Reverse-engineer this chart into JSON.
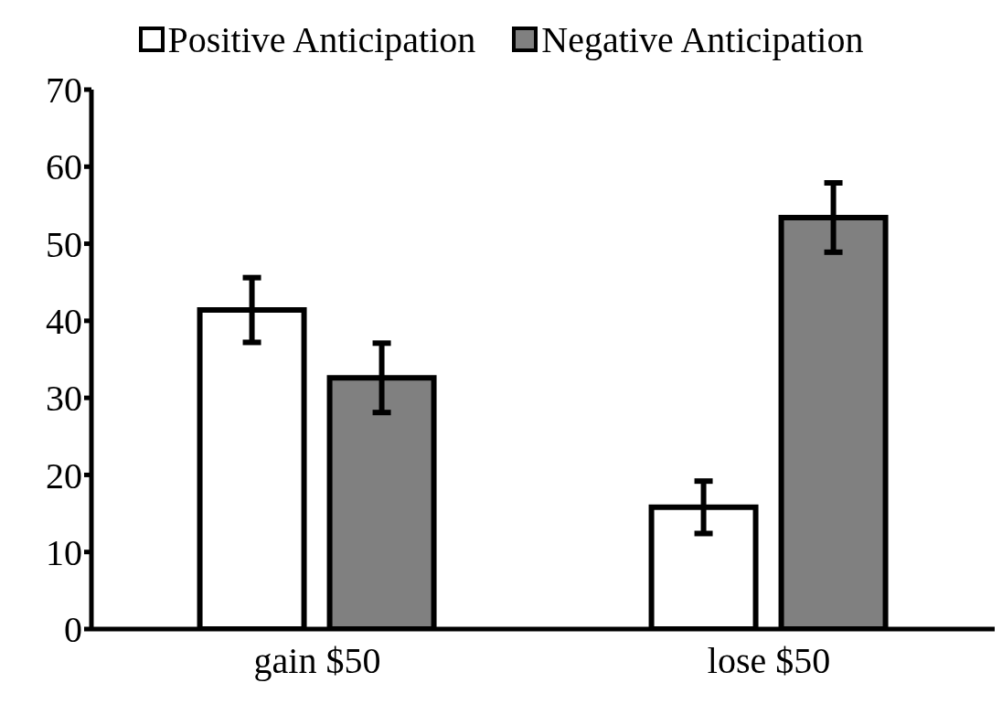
{
  "chart_data": {
    "type": "bar",
    "categories": [
      "gain $50",
      "lose $50"
    ],
    "series": [
      {
        "name": "Positive Anticipation",
        "color": "#ffffff",
        "values": [
          41.4,
          15.8
        ],
        "errors": [
          4.2,
          3.4
        ]
      },
      {
        "name": "Negative Anticipation",
        "color": "#808080",
        "values": [
          32.6,
          53.4
        ],
        "errors": [
          4.5,
          4.5
        ]
      }
    ],
    "ylim": [
      0,
      70
    ],
    "yticks": [
      0,
      10,
      20,
      30,
      40,
      50,
      60,
      70
    ],
    "grid": false,
    "legend": "top"
  }
}
